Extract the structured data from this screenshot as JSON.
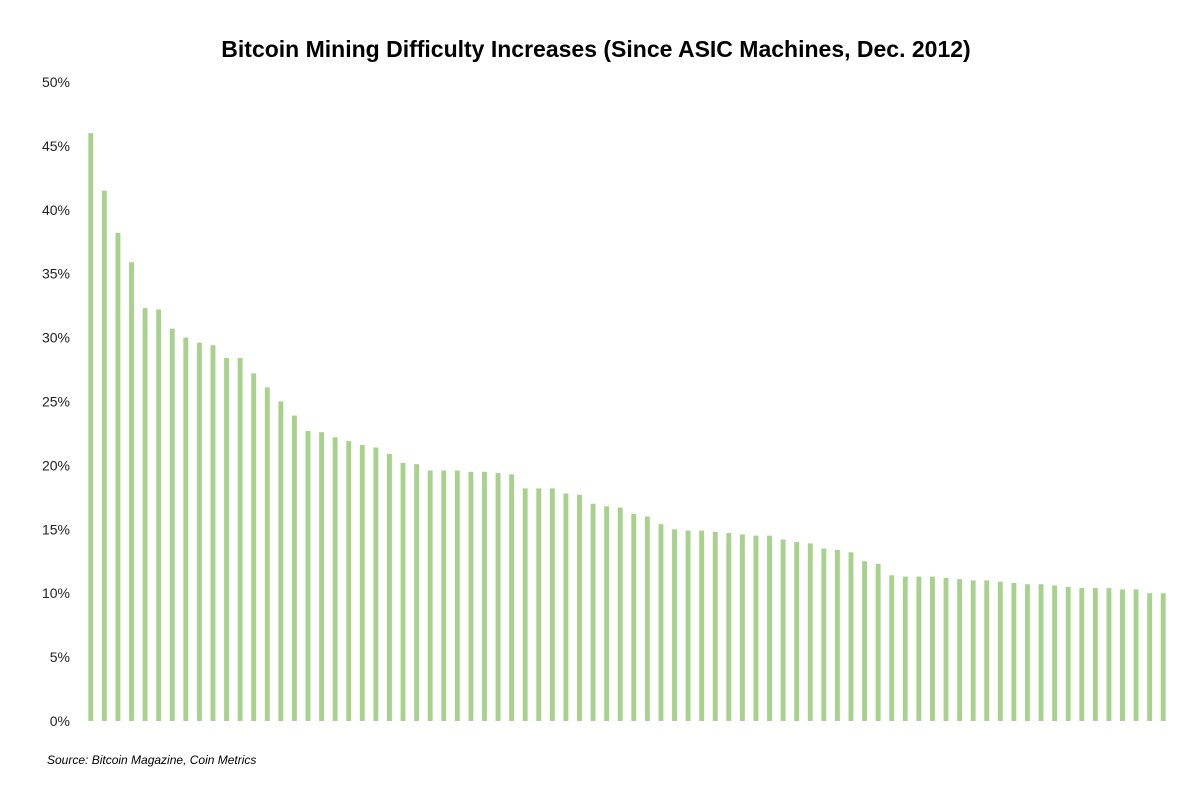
{
  "chart_data": {
    "type": "bar",
    "title": "Bitcoin Mining Difficulty Increases (Since ASIC Machines, Dec. 2012)",
    "xlabel": "",
    "ylabel": "",
    "ylim": [
      0,
      50
    ],
    "yticks": [
      0,
      5,
      10,
      15,
      20,
      25,
      30,
      35,
      40,
      45,
      50
    ],
    "ytick_labels": [
      "0%",
      "5%",
      "10%",
      "15%",
      "20%",
      "25%",
      "30%",
      "35%",
      "40%",
      "45%",
      "50%"
    ],
    "grid": false,
    "legend": "none",
    "bar_color": "#a9d18e",
    "values": [
      46.0,
      41.5,
      38.2,
      35.9,
      32.3,
      32.2,
      30.7,
      30.0,
      29.6,
      29.4,
      28.4,
      28.4,
      27.2,
      26.1,
      25.0,
      23.9,
      22.7,
      22.6,
      22.2,
      21.9,
      21.6,
      21.4,
      20.9,
      20.2,
      20.1,
      19.6,
      19.6,
      19.6,
      19.5,
      19.5,
      19.4,
      19.3,
      18.2,
      18.2,
      18.2,
      17.8,
      17.7,
      17.0,
      16.8,
      16.7,
      16.2,
      16.0,
      15.4,
      15.0,
      14.9,
      14.9,
      14.8,
      14.7,
      14.6,
      14.5,
      14.5,
      14.2,
      14.0,
      13.9,
      13.5,
      13.4,
      13.2,
      12.5,
      12.3,
      11.4,
      11.3,
      11.3,
      11.3,
      11.2,
      11.1,
      11.0,
      11.0,
      10.9,
      10.8,
      10.7,
      10.7,
      10.6,
      10.5,
      10.4,
      10.4,
      10.4,
      10.3,
      10.3,
      10.0,
      10.0
    ]
  },
  "source": "Source: Bitcoin Magazine, Coin Metrics"
}
